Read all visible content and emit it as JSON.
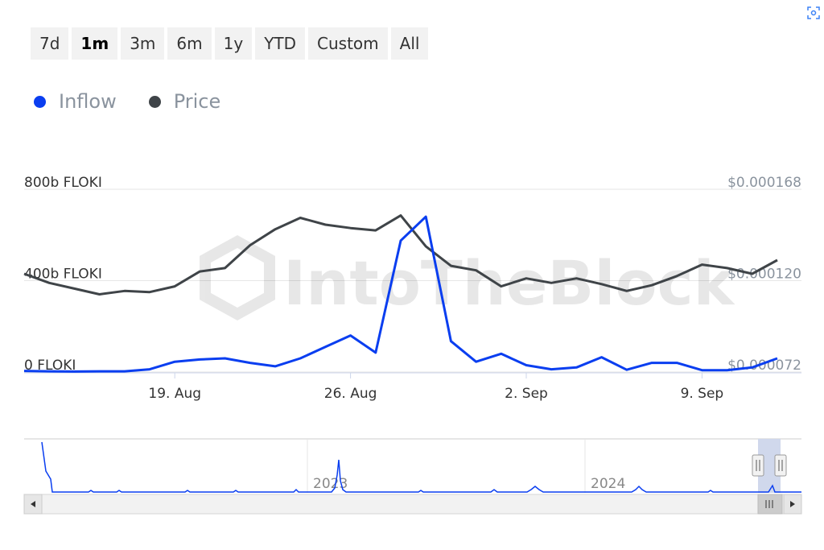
{
  "range_selector": {
    "buttons": [
      "7d",
      "1m",
      "3m",
      "6m",
      "1y",
      "YTD",
      "Custom",
      "All"
    ],
    "active": "1m"
  },
  "legend": [
    {
      "label": "Inflow",
      "color": "#0a3ef0"
    },
    {
      "label": "Price",
      "color": "#3f4448"
    }
  ],
  "watermark": "IntoTheBlock",
  "chart_data": {
    "type": "line",
    "x_labels": [
      "19. Aug",
      "26. Aug",
      "2. Sep",
      "9. Sep"
    ],
    "left_axis": {
      "ticks": [
        "800b FLOKI",
        "400b FLOKI",
        "0 FLOKI"
      ],
      "range": [
        0,
        800
      ]
    },
    "right_axis": {
      "ticks": [
        "$0.000168",
        "$0.000120",
        "$0.000072"
      ],
      "range": [
        7.2e-05,
        0.000168
      ]
    },
    "x": [
      "Aug 13",
      "Aug 14",
      "Aug 15",
      "Aug 16",
      "Aug 17",
      "Aug 18",
      "Aug 19",
      "Aug 20",
      "Aug 21",
      "Aug 22",
      "Aug 23",
      "Aug 24",
      "Aug 25",
      "Aug 26",
      "Aug 27",
      "Aug 28",
      "Aug 29",
      "Aug 30",
      "Aug 31",
      "Sep 1",
      "Sep 2",
      "Sep 3",
      "Sep 4",
      "Sep 5",
      "Sep 6",
      "Sep 7",
      "Sep 8",
      "Sep 9",
      "Sep 10",
      "Sep 11",
      "Sep 12"
    ],
    "series": [
      {
        "name": "Inflow",
        "axis": "left",
        "color": "#0a3ef0",
        "values": [
          5,
          3,
          2,
          3,
          3,
          12,
          45,
          55,
          60,
          40,
          25,
          60,
          110,
          160,
          85,
          575,
          680,
          135,
          45,
          80,
          30,
          12,
          20,
          65,
          10,
          40,
          40,
          8,
          8,
          20,
          60
        ]
      },
      {
        "name": "Price",
        "axis": "left",
        "color": "#3f4448",
        "values": [
          430,
          390,
          365,
          340,
          355,
          350,
          375,
          440,
          455,
          555,
          625,
          675,
          645,
          630,
          620,
          685,
          550,
          465,
          445,
          375,
          410,
          390,
          410,
          385,
          355,
          380,
          420,
          470,
          455,
          430,
          490
        ]
      }
    ],
    "navigator": {
      "labels": [
        "2023",
        "2024"
      ]
    }
  }
}
